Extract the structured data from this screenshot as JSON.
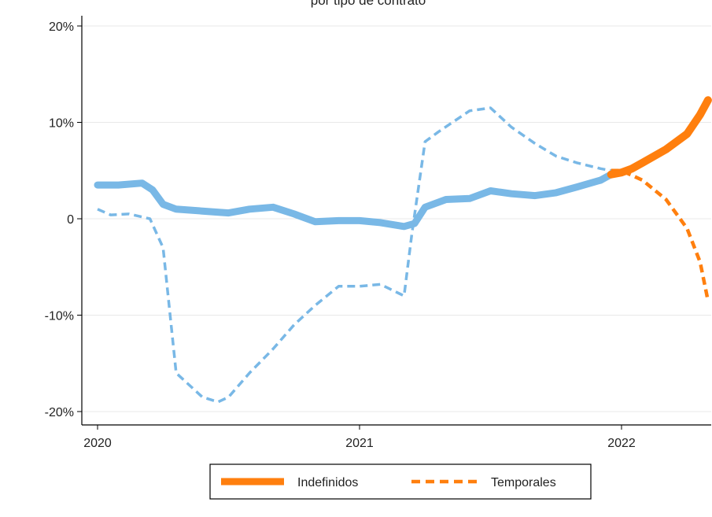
{
  "chart_data": {
    "type": "line",
    "title": "",
    "subtitle": "por tipo de contrato",
    "xlabel": "",
    "ylabel": "",
    "xlim": [
      2020,
      2022.35
    ],
    "ylim": [
      -21,
      21
    ],
    "x_ticks": [
      {
        "value": 2020,
        "label": "2020"
      },
      {
        "value": 2021,
        "label": "2021"
      },
      {
        "value": 2022,
        "label": "2022"
      }
    ],
    "y_ticks": [
      {
        "value": 20,
        "label": "20%"
      },
      {
        "value": 10,
        "label": "10%"
      },
      {
        "value": 0,
        "label": "0"
      },
      {
        "value": -10,
        "label": "-10%"
      },
      {
        "value": -20,
        "label": "-20%"
      }
    ],
    "grid": true,
    "legend": {
      "position": "bottom",
      "entries": [
        "Indefinidos",
        "Temporales"
      ]
    },
    "colors": {
      "orange": "#ff7f0e",
      "blue": "#79b8e6",
      "grid": "#e8e8e8",
      "axis": "#000000"
    },
    "series": [
      {
        "name": "Indefinidos",
        "style": "solid",
        "segments": [
          {
            "color": "#79b8e6",
            "x": [
              2020.0,
              2020.08,
              2020.17,
              2020.21,
              2020.25,
              2020.3,
              2020.4,
              2020.5,
              2020.58,
              2020.67,
              2020.75,
              2020.83,
              2020.92,
              2021.0,
              2021.08,
              2021.17,
              2021.21,
              2021.25,
              2021.33,
              2021.42,
              2021.5,
              2021.58,
              2021.67,
              2021.75,
              2021.83,
              2021.92,
              2021.96
            ],
            "y": [
              3.5,
              3.5,
              3.7,
              3.0,
              1.5,
              1.0,
              0.8,
              0.6,
              1.0,
              1.2,
              0.5,
              -0.3,
              -0.2,
              -0.2,
              -0.4,
              -0.8,
              -0.5,
              1.2,
              2.0,
              2.1,
              2.9,
              2.6,
              2.4,
              2.7,
              3.3,
              4.0,
              4.6
            ]
          },
          {
            "color": "#ff7f0e",
            "x": [
              2021.96,
              2022.0,
              2022.04,
              2022.08,
              2022.17,
              2022.25,
              2022.3,
              2022.33
            ],
            "y": [
              4.6,
              4.8,
              5.2,
              5.8,
              7.2,
              8.8,
              10.8,
              12.3
            ]
          }
        ]
      },
      {
        "name": "Temporales",
        "style": "dashed",
        "segments": [
          {
            "color": "#79b8e6",
            "x": [
              2020.0,
              2020.05,
              2020.12,
              2020.2,
              2020.25,
              2020.3,
              2020.4,
              2020.46,
              2020.5,
              2020.58,
              2020.67,
              2020.75,
              2020.83,
              2020.92,
              2021.0,
              2021.08,
              2021.17,
              2021.2,
              2021.25,
              2021.3,
              2021.42,
              2021.5,
              2021.58,
              2021.67,
              2021.75,
              2021.83,
              2021.92,
              2021.96
            ],
            "y": [
              1.0,
              0.4,
              0.5,
              0.0,
              -3.0,
              -16.0,
              -18.5,
              -19.0,
              -18.5,
              -16.0,
              -13.5,
              -11.0,
              -9.0,
              -7.0,
              -7.0,
              -6.8,
              -8.0,
              -1.5,
              8.0,
              9.0,
              11.2,
              11.5,
              9.5,
              7.8,
              6.5,
              5.8,
              5.2,
              5.0
            ]
          },
          {
            "color": "#ff7f0e",
            "x": [
              2021.96,
              2022.0,
              2022.08,
              2022.17,
              2022.25,
              2022.3,
              2022.33
            ],
            "y": [
              5.0,
              5.0,
              4.0,
              2.0,
              -1.0,
              -4.5,
              -8.5
            ]
          }
        ]
      }
    ]
  }
}
